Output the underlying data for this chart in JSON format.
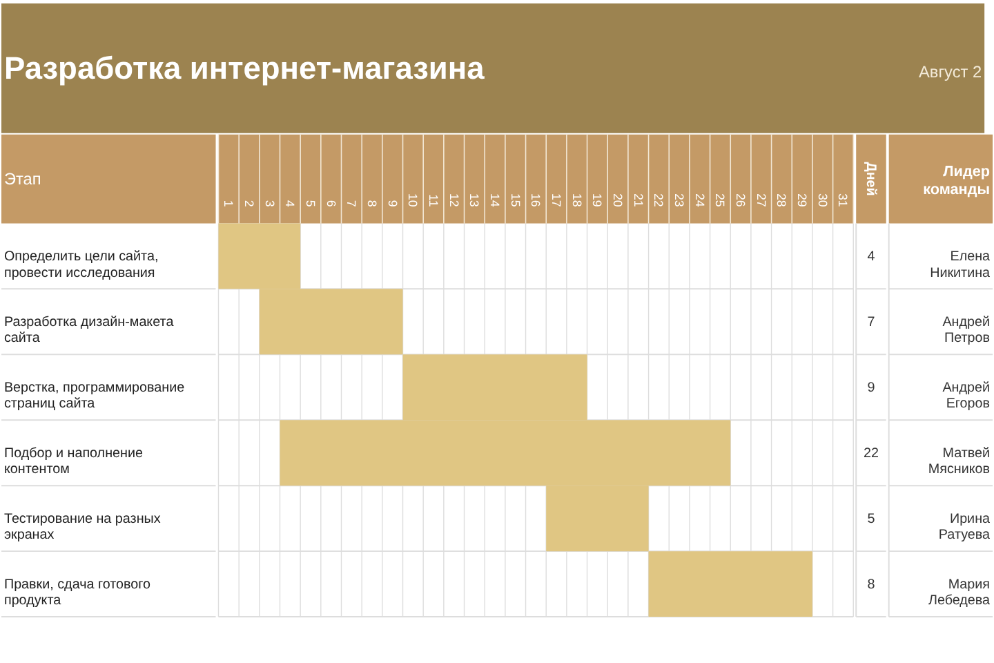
{
  "chart_data": {
    "type": "bar",
    "orientation": "horizontal",
    "title": "Разработка интернет-магазина",
    "subtitle": "Август 2",
    "ylabel": "Этап",
    "categories": [
      "Определить цели сайта, провести исследования",
      "Разработка дизайн-макета сайта",
      "Верстка, программирование страниц сайта",
      "Подбор и наполнение контентом",
      "Тестирование на разных экранах",
      "Правки, сдача готового продукта"
    ],
    "base": [
      0.5,
      2.5,
      9.5,
      3.5,
      16.5,
      21.5
    ],
    "values": [
      4,
      7,
      9,
      22,
      5,
      8
    ],
    "color": "#e0c683",
    "data_labels": true,
    "xlim": [
      0.5,
      31.5
    ],
    "xticks": [
      1,
      2,
      3,
      4,
      5,
      6,
      7,
      8,
      9,
      10,
      11,
      12,
      13,
      14,
      15,
      16,
      17,
      18,
      19,
      20,
      21,
      22,
      23,
      24,
      25,
      26,
      27,
      28,
      29,
      30,
      31,
      {
        "value": 0.5,
        "label": null
      },
      {
        "value": 1.5,
        "label": null
      },
      {
        "value": 2.5,
        "label": null
      },
      {
        "value": 3.5,
        "label": null
      },
      {
        "value": 4.5,
        "label": null
      },
      {
        "value": 5.5,
        "label": null
      },
      {
        "value": 6.5,
        "label": null
      },
      {
        "value": 7.5,
        "label": null
      },
      {
        "value": 8.5,
        "label": null
      },
      {
        "value": 9.5,
        "label": null
      },
      {
        "value": 10.5,
        "label": null
      },
      {
        "value": 11.5,
        "label": null
      },
      {
        "value": 12.5,
        "label": null
      },
      {
        "value": 13.5,
        "label": null
      },
      {
        "value": 14.5,
        "label": null
      },
      {
        "value": 15.5,
        "label": null
      },
      {
        "value": 16.5,
        "label": null
      },
      {
        "value": 17.5,
        "label": null
      },
      {
        "value": 18.5,
        "label": null
      },
      {
        "value": 19.5,
        "label": null
      },
      {
        "value": 20.5,
        "label": null
      },
      {
        "value": 21.5,
        "label": null
      },
      {
        "value": 22.5,
        "label": null
      },
      {
        "value": 23.5,
        "label": null
      },
      {
        "value": 24.5,
        "label": null
      },
      {
        "value": 25.5,
        "label": null
      },
      {
        "value": 26.5,
        "label": null
      },
      {
        "value": 27.5,
        "label": null
      },
      {
        "value": 28.5,
        "label": null
      },
      {
        "value": 29.5,
        "label": null
      },
      {
        "value": 30.5,
        "label": null
      },
      {
        "value": 31.5,
        "label": null
      }
    ],
    "grid": true,
    "legend": false,
    "annotations": [
      "Дней",
      "Лидер команды",
      "Елена Никитина",
      "Андрей Петров",
      "Андрей Егоров",
      "Матвей Мясников",
      "Ирина Ратуева",
      "Мария Лебедева"
    ]
  }
}
